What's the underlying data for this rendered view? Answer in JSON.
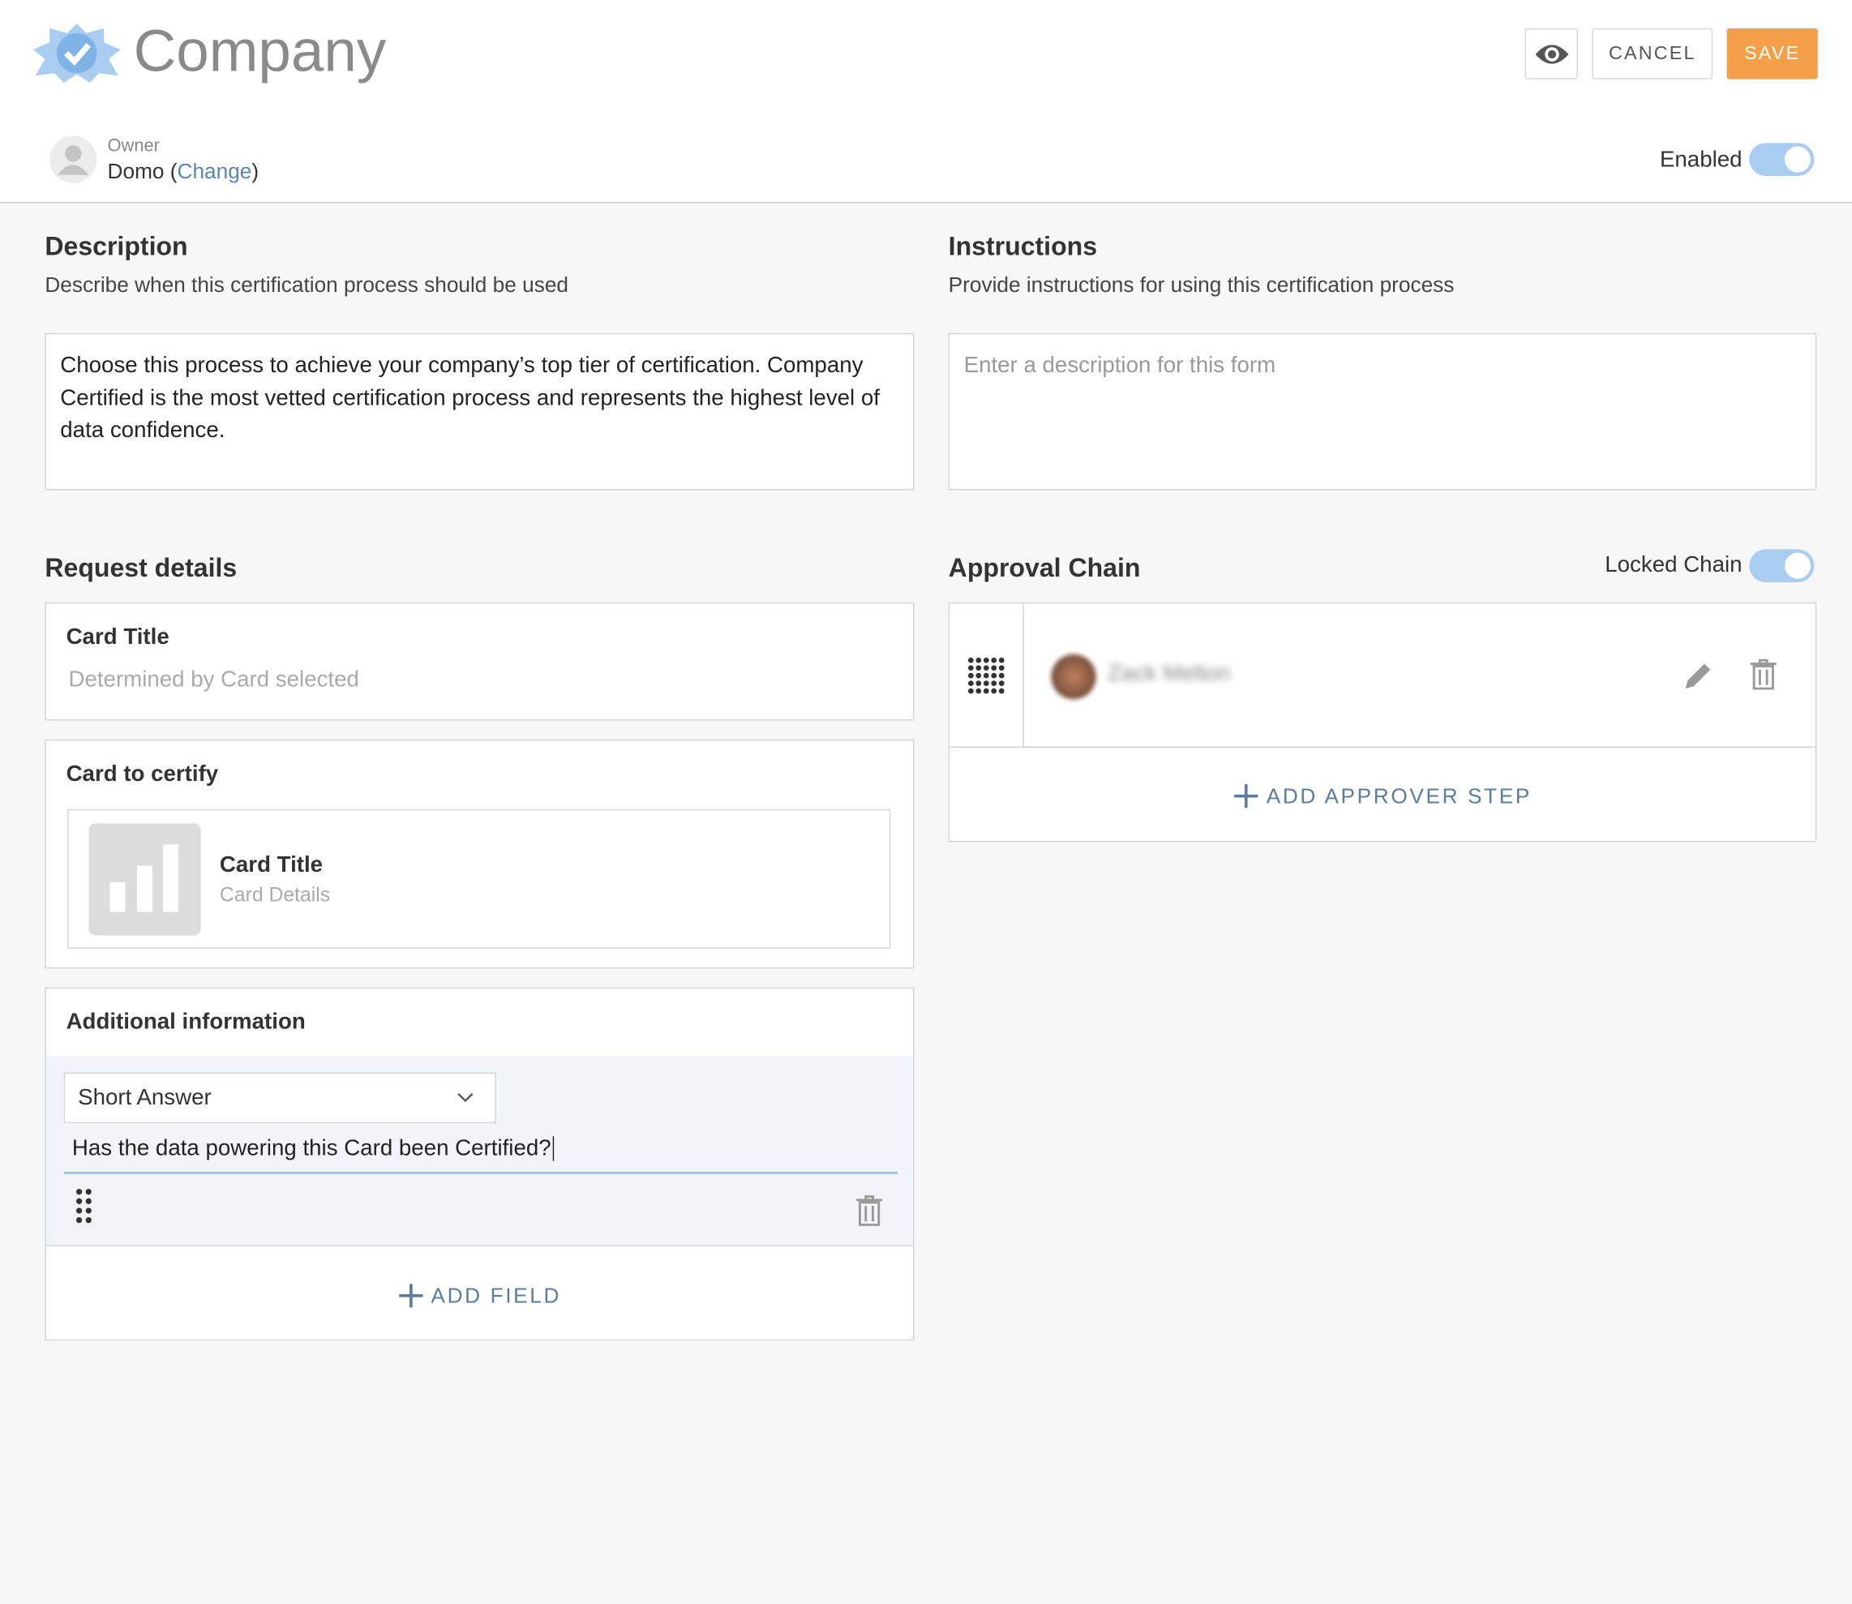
{
  "header": {
    "title": "Company",
    "cancel": "CANCEL",
    "save": "SAVE"
  },
  "owner": {
    "label": "Owner",
    "name": "Domo (",
    "link": "Change",
    "suffix": ")",
    "enabled": "Enabled"
  },
  "description": {
    "title": "Description",
    "subtitle": "Describe when this certification process should be used",
    "text": "Choose this process to achieve your company’s top tier of certification. Company Certified is the most vetted certification process and represents the highest level of data confidence."
  },
  "instructions": {
    "title": "Instructions",
    "subtitle": "Provide instructions for using this certification process",
    "placeholder": "Enter a description for this form"
  },
  "request": {
    "title": "Request details",
    "card_title_label": "Card Title",
    "card_title_placeholder": "Determined by Card selected",
    "certify_label": "Card to certify",
    "card_name": "Card Title",
    "card_details": "Card Details",
    "additional_label": "Additional information",
    "field_type": "Short Answer",
    "question": "Has the data powering this Card been Certified?",
    "add_field": "ADD FIELD"
  },
  "approval": {
    "title": "Approval Chain",
    "locked": "Locked Chain",
    "approver": "Zack Melton",
    "add_step": "ADD APPROVER STEP"
  }
}
